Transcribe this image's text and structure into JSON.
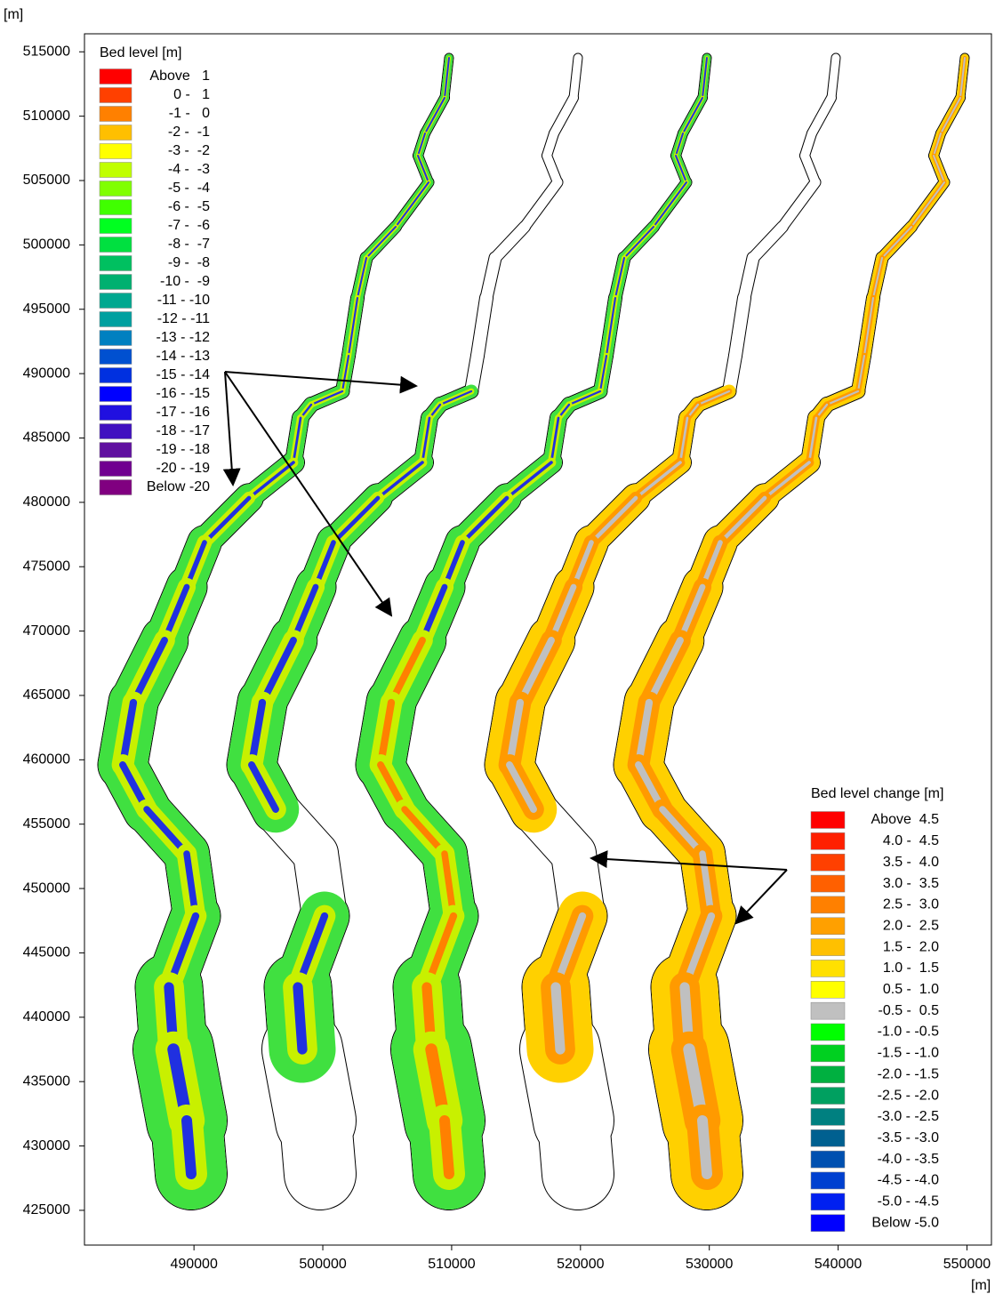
{
  "chart_data": {
    "type": "map",
    "y_unit": "[m]",
    "x_unit": "[m]",
    "xlim": [
      481500,
      551900
    ],
    "ylim": [
      422300,
      516400
    ],
    "xticks": [
      490000,
      500000,
      510000,
      520000,
      530000,
      540000,
      550000
    ],
    "yticks": [
      425000,
      430000,
      435000,
      440000,
      445000,
      450000,
      455000,
      460000,
      465000,
      470000,
      475000,
      480000,
      485000,
      490000,
      495000,
      500000,
      505000,
      510000,
      515000
    ],
    "legend_left": {
      "title": "Bed level [m]",
      "labels": [
        "Above   1",
        "0 -   1",
        "-1 -   0",
        "-2 -  -1",
        "-3 -  -2",
        "-4 -  -3",
        "-5 -  -4",
        "-6 -  -5",
        "-7 -  -6",
        "-8 -  -7",
        "-9 -  -8",
        "-10 -  -9",
        "-11 - -10",
        "-12 - -11",
        "-13 - -12",
        "-14 - -13",
        "-15 - -14",
        "-16 - -15",
        "-17 - -16",
        "-18 - -17",
        "-19 - -18",
        "-20 - -19",
        "Below -20"
      ],
      "colors": [
        "#ff0000",
        "#ff4000",
        "#ff8000",
        "#ffbf00",
        "#ffff00",
        "#c0ff00",
        "#80ff00",
        "#40ff00",
        "#00ff20",
        "#00e040",
        "#00c060",
        "#00b070",
        "#00a890",
        "#00a0a0",
        "#0080c0",
        "#0050d0",
        "#0030e0",
        "#0000ff",
        "#2010e0",
        "#4010c0",
        "#6010a0",
        "#700090",
        "#800080"
      ]
    },
    "legend_right": {
      "title": "Bed level change [m]",
      "labels": [
        "Above  4.5",
        "4.0 -  4.5",
        "3.5 -  4.0",
        "3.0 -  3.5",
        "2.5 -  3.0",
        "2.0 -  2.5",
        "1.5 -  2.0",
        "1.0 -  1.5",
        "0.5 -  1.0",
        "-0.5 -  0.5",
        "-1.0 - -0.5",
        "-1.5 - -1.0",
        "-2.0 - -1.5",
        "-2.5 - -2.0",
        "-3.0 - -2.5",
        "-3.5 - -3.0",
        "-4.0 - -3.5",
        "-4.5 - -4.0",
        "-5.0 - -4.5",
        "Below -5.0"
      ],
      "colors": [
        "#ff0000",
        "#ff2000",
        "#ff4000",
        "#ff6000",
        "#ff8000",
        "#ffa000",
        "#ffc000",
        "#ffe000",
        "#ffff00",
        "#c0c0c0",
        "#00ff00",
        "#00d020",
        "#00b040",
        "#00a060",
        "#008080",
        "#006090",
        "#0050b0",
        "#0040d0",
        "#0020f0",
        "#0000ff"
      ]
    }
  }
}
